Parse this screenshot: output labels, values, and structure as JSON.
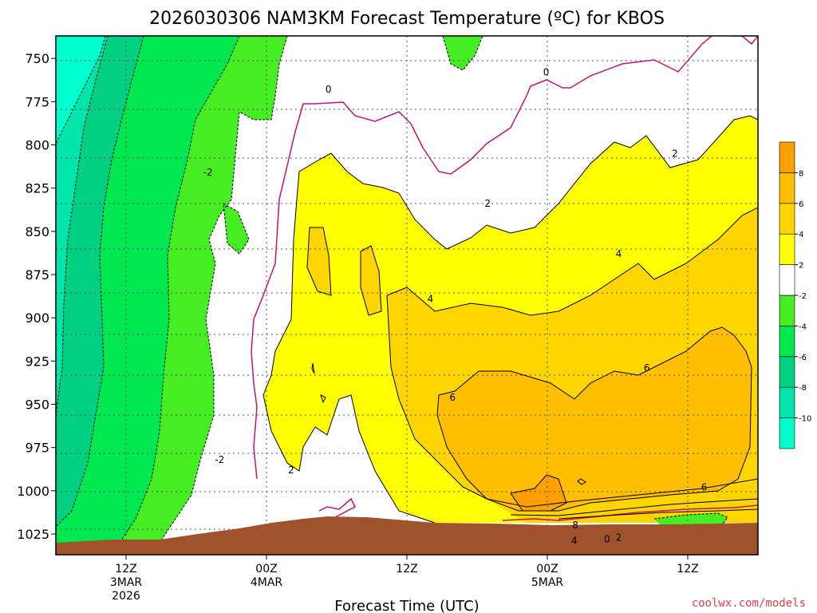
{
  "title": "2026030306 NAM3KM Forecast Temperature (ºC) for KBOS",
  "credit": "coolwx.com/models",
  "chart_data": {
    "type": "heatmap",
    "title": "2026030306 NAM3KM Forecast Temperature (ºC) for KBOS",
    "xlabel": "Forecast Time (UTC)",
    "ylabel": "",
    "x_range_hours": [
      0,
      60
    ],
    "y_range_hpa": [
      1037,
      737
    ],
    "y_ticks": [
      "750",
      "775",
      "800",
      "825",
      "850",
      "875",
      "900",
      "925",
      "950",
      "975",
      "1000",
      "1025"
    ],
    "y_tick_values": [
      750,
      775,
      800,
      825,
      850,
      875,
      900,
      925,
      950,
      975,
      1000,
      1025
    ],
    "x_ticks": [
      {
        "hour": 6,
        "line1": "12Z",
        "line2": "3MAR",
        "line3": "2026"
      },
      {
        "hour": 18,
        "line1": "00Z",
        "line2": "4MAR",
        "line3": ""
      },
      {
        "hour": 30,
        "line1": "12Z",
        "line2": "",
        "line3": ""
      },
      {
        "hour": 42,
        "line1": "00Z",
        "line2": "5MAR",
        "line3": ""
      },
      {
        "hour": 54,
        "line1": "12Z",
        "line2": "",
        "line3": ""
      }
    ],
    "grid": true,
    "colorbar": {
      "bins": [
        {
          "range": [
            -12,
            -10
          ],
          "color": "#00ffcc"
        },
        {
          "range": [
            -10,
            -8
          ],
          "color": "#00e6aa"
        },
        {
          "range": [
            -8,
            -6
          ],
          "color": "#00d080"
        },
        {
          "range": [
            -6,
            -4
          ],
          "color": "#00e850"
        },
        {
          "range": [
            -4,
            -2
          ],
          "color": "#44ee22"
        },
        {
          "range": [
            -2,
            2
          ],
          "color": "#ffffff"
        },
        {
          "range": [
            2,
            4
          ],
          "color": "#ffff00"
        },
        {
          "range": [
            4,
            6
          ],
          "color": "#ffd500"
        },
        {
          "range": [
            6,
            8
          ],
          "color": "#ffbf00"
        },
        {
          "range": [
            8,
            10
          ],
          "color": "#ff9f00"
        }
      ],
      "labels": [
        -10,
        -8,
        -6,
        -4,
        -2,
        2,
        4,
        6,
        8
      ]
    },
    "contour_labels": [
      {
        "value": "0",
        "hour": 23.3,
        "p": 768
      },
      {
        "value": "0",
        "hour": 41.9,
        "p": 758
      },
      {
        "value": "-2",
        "hour": 13.0,
        "p": 816
      },
      {
        "value": "-2",
        "hour": 14.0,
        "p": 982
      },
      {
        "value": "2",
        "hour": 20.1,
        "p": 988
      },
      {
        "value": "2",
        "hour": 36.9,
        "p": 834
      },
      {
        "value": "2",
        "hour": 52.9,
        "p": 805
      },
      {
        "value": "4",
        "hour": 32.0,
        "p": 889
      },
      {
        "value": "4",
        "hour": 48.1,
        "p": 863
      },
      {
        "value": "4",
        "hour": 44.3,
        "p": 1029
      },
      {
        "value": "6",
        "hour": 33.9,
        "p": 946
      },
      {
        "value": "6",
        "hour": 50.5,
        "p": 929
      },
      {
        "value": "6",
        "hour": 55.4,
        "p": 998
      },
      {
        "value": "8",
        "hour": 44.4,
        "p": 1020
      },
      {
        "value": "0",
        "hour": 47.1,
        "p": 1028
      },
      {
        "value": "2",
        "hour": 48.1,
        "p": 1027
      }
    ]
  }
}
